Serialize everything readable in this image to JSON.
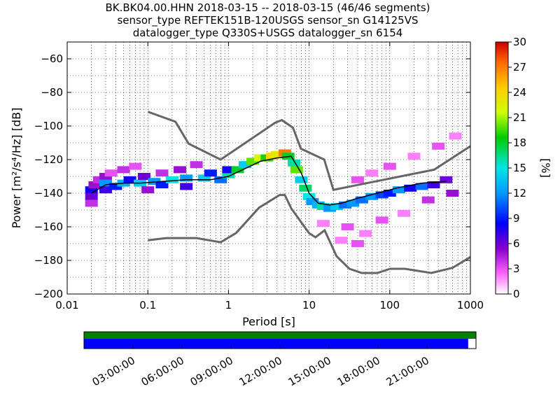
{
  "header": {
    "line1": "BK.BK04.00.HHN   2018-03-15 -- 2018-03-15  (46/46 segments)",
    "line2": "sensor_type REFTEK151B-120USGS sensor_sn G14125VS",
    "line3": "datalogger_type Q330S+USGS datalogger_sn 6154"
  },
  "chart_data": {
    "type": "heatmap",
    "title": "BK.BK04.00.HHN   2018-03-15 -- 2018-03-15  (46/46 segments)",
    "xlabel": "Period [s]",
    "ylabel": "Power [m²/s⁴/Hz] [dB]",
    "xscale": "log",
    "xlim": [
      0.01,
      1000
    ],
    "ylim": [
      -200,
      -50
    ],
    "xticks": [
      "0.01",
      "0.1",
      "1",
      "10",
      "100",
      "1000"
    ],
    "yticks": [
      "−60",
      "−80",
      "−100",
      "−120",
      "−140",
      "−160",
      "−180",
      "−200"
    ],
    "colorbar": {
      "label": "[%]",
      "ticks": [
        "0",
        "3",
        "6",
        "9",
        "12",
        "15",
        "18",
        "21",
        "24",
        "27",
        "30"
      ],
      "range": [
        0,
        30
      ]
    },
    "mean_curve": {
      "x": [
        0.02,
        0.03,
        0.05,
        0.08,
        0.15,
        0.3,
        0.6,
        1,
        1.5,
        2.5,
        4,
        6,
        8,
        10,
        13,
        18,
        25,
        40,
        70,
        120,
        250,
        500
      ],
      "y": [
        -140,
        -135,
        -134,
        -134,
        -133,
        -132,
        -132,
        -130,
        -126,
        -121,
        -119,
        -118,
        -128,
        -140,
        -146,
        -147,
        -146,
        -143,
        -140,
        -137,
        -134,
        -133
      ]
    },
    "nhnm": {
      "x": [
        0.1,
        0.22,
        0.32,
        0.8,
        3.8,
        4.6,
        6.3,
        7.9,
        15.4,
        20,
        354.8,
        1000
      ],
      "y": [
        -91.5,
        -97.4,
        -110.5,
        -120,
        -98,
        -96.5,
        -101,
        -113.5,
        -120,
        -138,
        -126,
        -112
      ]
    },
    "nlnm": {
      "x": [
        0.1,
        0.17,
        0.4,
        0.8,
        1.24,
        2.4,
        4.3,
        5,
        6,
        10,
        12,
        15.6,
        21.9,
        31.6,
        45,
        70,
        101,
        154,
        328,
        600,
        1000
      ],
      "y": [
        -168,
        -166.7,
        -166.7,
        -169.2,
        -163.7,
        -148.6,
        -141.1,
        -141.1,
        -149,
        -163.8,
        -166.2,
        -162.1,
        -177.5,
        -185,
        -187.5,
        -187.5,
        -185,
        -185,
        -187.5,
        -184.4,
        -178
      ]
    },
    "cells": [
      [
        0.02,
        -138,
        8
      ],
      [
        0.02,
        -142,
        6
      ],
      [
        0.02,
        -146,
        4
      ],
      [
        0.022,
        -135,
        5
      ],
      [
        0.025,
        -132,
        4
      ],
      [
        0.03,
        -130,
        5
      ],
      [
        0.03,
        -134,
        12
      ],
      [
        0.03,
        -138,
        7
      ],
      [
        0.035,
        -128,
        3
      ],
      [
        0.04,
        -136,
        9
      ],
      [
        0.05,
        -126,
        4
      ],
      [
        0.05,
        -134,
        13
      ],
      [
        0.06,
        -132,
        8
      ],
      [
        0.07,
        -124,
        3
      ],
      [
        0.08,
        -134,
        14
      ],
      [
        0.09,
        -130,
        6
      ],
      [
        0.1,
        -138,
        5
      ],
      [
        0.12,
        -133,
        12
      ],
      [
        0.15,
        -128,
        4
      ],
      [
        0.15,
        -135,
        9
      ],
      [
        0.2,
        -132,
        15
      ],
      [
        0.25,
        -126,
        5
      ],
      [
        0.3,
        -131,
        12
      ],
      [
        0.3,
        -136,
        7
      ],
      [
        0.4,
        -123,
        4
      ],
      [
        0.5,
        -131,
        14
      ],
      [
        0.6,
        -128,
        9
      ],
      [
        0.8,
        -132,
        11
      ],
      [
        1,
        -129,
        16
      ],
      [
        1,
        -126,
        8
      ],
      [
        1.3,
        -126,
        18
      ],
      [
        1.6,
        -123,
        14
      ],
      [
        2,
        -121,
        20
      ],
      [
        2.5,
        -119,
        22
      ],
      [
        3,
        -119,
        19
      ],
      [
        3.5,
        -118,
        24
      ],
      [
        4,
        -117,
        23
      ],
      [
        5,
        -116,
        27
      ],
      [
        5.5,
        -118,
        18
      ],
      [
        6.5,
        -122,
        16
      ],
      [
        7,
        -126,
        20
      ],
      [
        8,
        -132,
        14
      ],
      [
        9,
        -137,
        17
      ],
      [
        10,
        -142,
        15
      ],
      [
        11,
        -145,
        12
      ],
      [
        13,
        -147,
        13
      ],
      [
        15,
        -148,
        16
      ],
      [
        18,
        -149,
        12
      ],
      [
        22,
        -148,
        14
      ],
      [
        28,
        -147,
        11
      ],
      [
        35,
        -146,
        12
      ],
      [
        45,
        -144,
        11
      ],
      [
        60,
        -142,
        12
      ],
      [
        80,
        -141,
        10
      ],
      [
        100,
        -140,
        9
      ],
      [
        130,
        -138,
        12
      ],
      [
        180,
        -137,
        8
      ],
      [
        250,
        -136,
        11
      ],
      [
        350,
        -135,
        7
      ],
      [
        500,
        -132,
        6
      ],
      [
        40,
        -132,
        3
      ],
      [
        60,
        -128,
        2
      ],
      [
        100,
        -124,
        3
      ],
      [
        200,
        -118,
        2
      ],
      [
        400,
        -112,
        3
      ],
      [
        650,
        -106,
        2
      ],
      [
        30,
        -160,
        3
      ],
      [
        50,
        -164,
        2
      ],
      [
        80,
        -156,
        3
      ],
      [
        150,
        -152,
        2
      ],
      [
        25,
        -168,
        2
      ],
      [
        40,
        -170,
        3
      ],
      [
        15,
        -158,
        2
      ],
      [
        300,
        -144,
        4
      ],
      [
        600,
        -140,
        5
      ]
    ]
  },
  "timeline": {
    "ticks": [
      "03:00:00",
      "06:00:00",
      "09:00:00",
      "12:00:00",
      "15:00:00",
      "18:00:00",
      "21:00:00"
    ],
    "coverage_fraction": 0.98,
    "colors": {
      "top": "#008000",
      "bottom": "#0000ff"
    }
  }
}
